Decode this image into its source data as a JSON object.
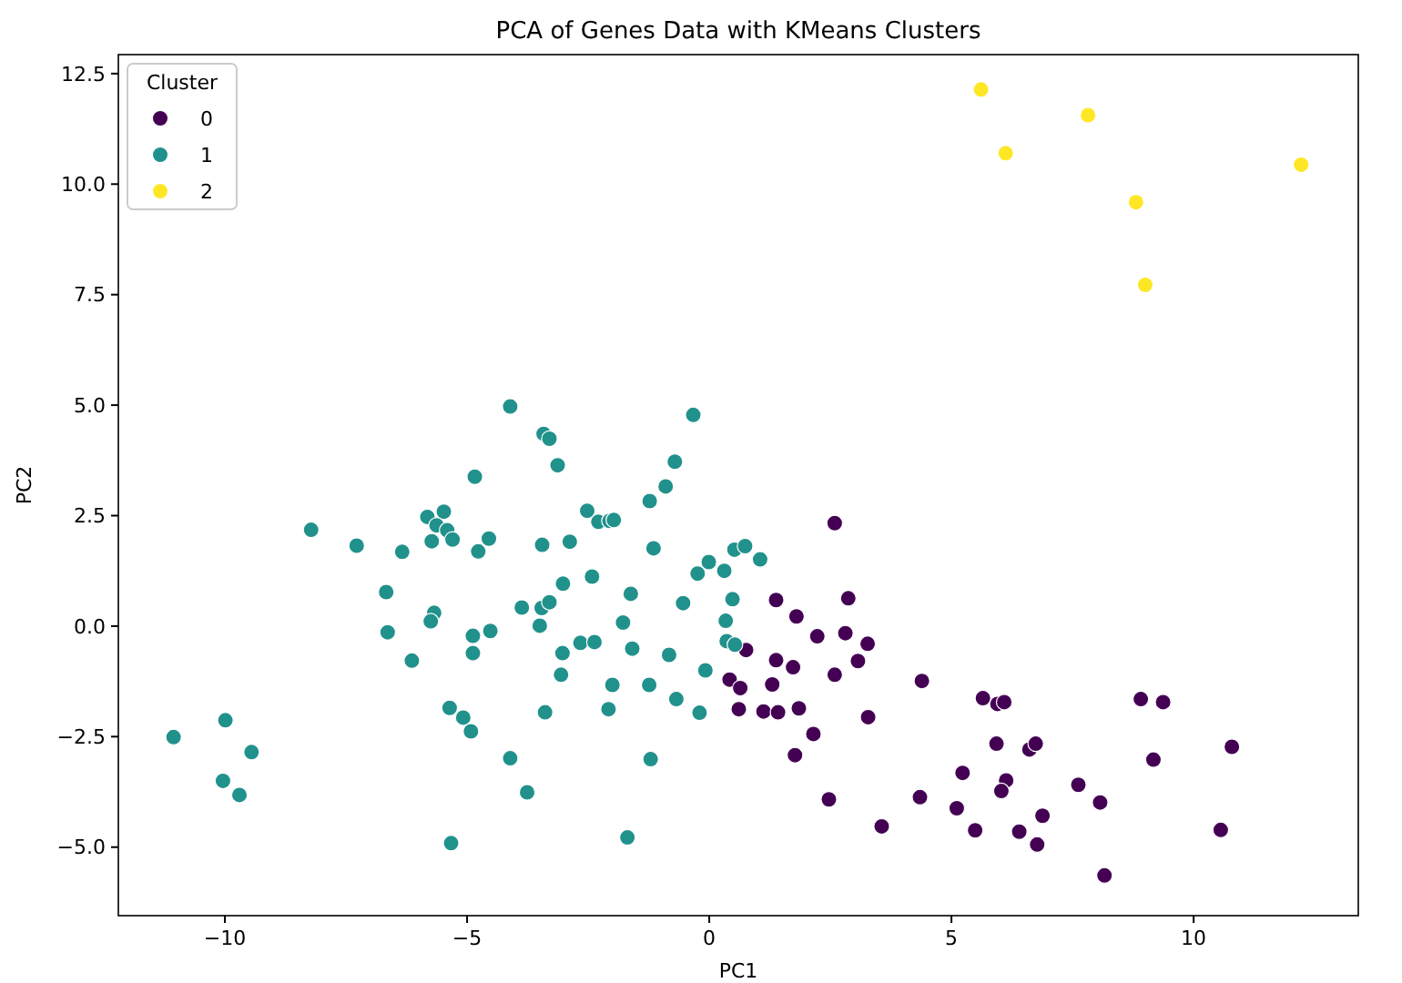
{
  "chart_data": {
    "type": "scatter",
    "title": "PCA of Genes Data with KMeans Clusters",
    "xlabel": "PC1",
    "ylabel": "PC2",
    "legend_title": "Cluster",
    "legend": "top left",
    "grid": false,
    "marker": "circle",
    "xlim": [
      -12.2,
      13.4
    ],
    "ylim": [
      -6.55,
      12.93
    ],
    "xticks": [
      {
        "value": -10,
        "label": "−10"
      },
      {
        "value": -5,
        "label": "−5"
      },
      0,
      5,
      10
    ],
    "yticks": [
      {
        "value": -5,
        "label": "−5.0"
      },
      {
        "value": -2.5,
        "label": "−2.5"
      },
      {
        "value": 0,
        "label": "0.0"
      },
      2.5,
      {
        "value": 5,
        "label": "5.0"
      },
      7.5,
      {
        "value": 10,
        "label": "10.0"
      },
      12.5
    ],
    "series": [
      {
        "name": "0",
        "color": "#440154",
        "x": [
          2.59,
          1.38,
          2.87,
          1.8,
          2.23,
          2.81,
          3.27,
          0.76,
          1.38,
          1.73,
          3.07,
          2.59,
          0.42,
          0.64,
          1.3,
          0.61,
          1.12,
          1.42,
          1.85,
          3.28,
          2.15,
          1.77,
          4.39,
          5.65,
          5.95,
          6.09,
          8.91,
          9.37,
          5.93,
          6.61,
          6.74,
          10.79,
          9.17,
          5.23,
          6.13,
          6.03,
          7.62,
          8.07,
          2.47,
          4.35,
          5.11,
          6.88,
          5.49,
          6.4,
          3.56,
          6.77,
          10.56,
          8.16
        ],
        "values": [
          2.33,
          0.59,
          0.63,
          0.22,
          -0.23,
          -0.16,
          -0.4,
          -0.54,
          -0.77,
          -0.93,
          -0.79,
          -1.1,
          -1.21,
          -1.4,
          -1.32,
          -1.88,
          -1.93,
          -1.95,
          -1.86,
          -2.06,
          -2.44,
          -2.92,
          -1.24,
          -1.63,
          -1.76,
          -1.72,
          -1.65,
          -1.72,
          -2.66,
          -2.79,
          -2.66,
          -2.73,
          -3.02,
          -3.32,
          -3.49,
          -3.73,
          -3.59,
          -3.99,
          -3.92,
          -3.87,
          -4.12,
          -4.29,
          -4.62,
          -4.65,
          -4.53,
          -4.94,
          -4.61,
          -5.64
        ]
      },
      {
        "name": "1",
        "color": "#21918c",
        "x": [
          -4.11,
          -3.42,
          -3.3,
          -3.13,
          -4.84,
          -8.22,
          -7.28,
          -6.34,
          -5.82,
          -5.48,
          -5.63,
          -5.41,
          -5.73,
          -5.3,
          -4.77,
          -4.55,
          -3.45,
          -3.02,
          -6.67,
          -5.68,
          -5.75,
          -6.64,
          -3.87,
          -3.46,
          -3.3,
          -3.5,
          -4.88,
          -4.52,
          -4.88,
          -6.14,
          -3.03,
          -3.06,
          -5.36,
          -5.08,
          -4.92,
          -3.39,
          -4.11,
          -3.76,
          -9.99,
          -11.06,
          -9.45,
          -10.04,
          -9.7,
          -5.33,
          -2.88,
          -0.33,
          -0.71,
          -0.9,
          -1.23,
          -2.52,
          -2.29,
          -2.06,
          -1.97,
          -1.15,
          -2.42,
          -1.62,
          -1.78,
          -0.54,
          -0.24,
          -0.01,
          0.31,
          0.52,
          0.74,
          1.05,
          0.48,
          0.34,
          0.36,
          0.53,
          -2.66,
          -2.37,
          -1.59,
          -0.83,
          -0.08,
          -2.0,
          -1.24,
          -0.68,
          -2.08,
          -0.2,
          -1.21,
          -1.69
        ],
        "values": [
          4.97,
          4.35,
          4.24,
          3.64,
          3.38,
          2.18,
          1.82,
          1.68,
          2.47,
          2.59,
          2.28,
          2.17,
          1.92,
          1.96,
          1.69,
          1.98,
          1.84,
          0.96,
          0.77,
          0.3,
          0.11,
          -0.14,
          0.42,
          0.41,
          0.54,
          0.01,
          -0.22,
          -0.11,
          -0.61,
          -0.78,
          -0.61,
          -1.1,
          -1.85,
          -2.07,
          -2.38,
          -1.95,
          -2.99,
          -3.76,
          -2.13,
          -2.51,
          -2.85,
          -3.5,
          -3.82,
          -4.91,
          1.91,
          4.78,
          3.72,
          3.16,
          2.83,
          2.61,
          2.36,
          2.38,
          2.4,
          1.76,
          1.12,
          0.73,
          0.08,
          0.52,
          1.19,
          1.45,
          1.25,
          1.73,
          1.81,
          1.51,
          0.61,
          0.12,
          -0.34,
          -0.42,
          -0.38,
          -0.36,
          -0.51,
          -0.65,
          -1.0,
          -1.33,
          -1.33,
          -1.65,
          -1.88,
          -1.96,
          -3.01,
          -4.78
        ]
      },
      {
        "name": "2",
        "color": "#fde725",
        "x": [
          5.61,
          7.82,
          6.12,
          12.22,
          8.81,
          9.0
        ],
        "values": [
          12.14,
          11.56,
          10.7,
          10.44,
          9.59,
          7.72
        ]
      }
    ]
  }
}
